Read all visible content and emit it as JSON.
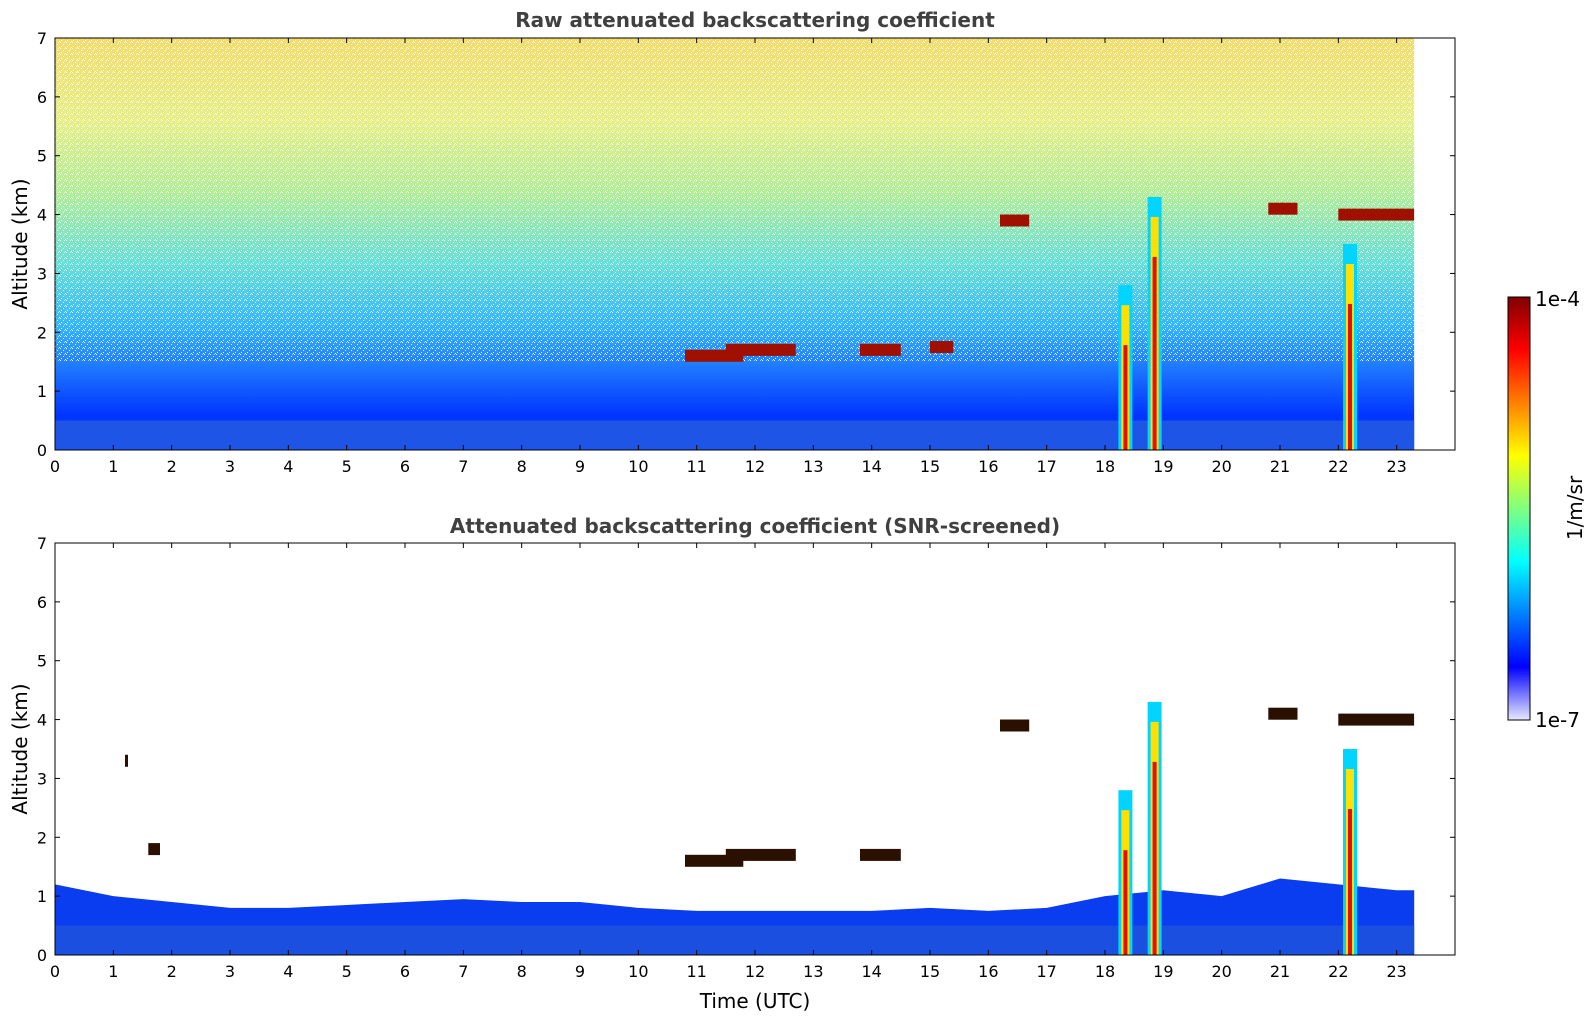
{
  "chart_data": [
    {
      "type": "heatmap",
      "title": "Raw attenuated backscattering coefficient",
      "xlabel": "",
      "ylabel": "Altitude (km)",
      "xlim": [
        0,
        24
      ],
      "ylim": [
        0,
        7
      ],
      "x_ticks": [
        "0",
        "1",
        "2",
        "3",
        "4",
        "5",
        "6",
        "7",
        "8",
        "9",
        "10",
        "11",
        "12",
        "13",
        "14",
        "15",
        "16",
        "17",
        "18",
        "19",
        "20",
        "21",
        "22",
        "23"
      ],
      "y_ticks": [
        "0",
        "1",
        "2",
        "3",
        "4",
        "5",
        "6",
        "7"
      ],
      "data_end_time": 23.3,
      "colorscale": "jet (log)",
      "features": {
        "boundary_layer_top_km": 0.5,
        "cloud_patches": [
          {
            "t_start": 10.8,
            "t_end": 11.8,
            "alt_km": 1.6
          },
          {
            "t_start": 11.5,
            "t_end": 12.7,
            "alt_km": 1.7
          },
          {
            "t_start": 13.8,
            "t_end": 14.5,
            "alt_km": 1.7
          },
          {
            "t_start": 15.0,
            "t_end": 15.4,
            "alt_km": 1.75
          },
          {
            "t_start": 16.2,
            "t_end": 16.7,
            "alt_km": 3.9
          },
          {
            "t_start": 20.8,
            "t_end": 21.3,
            "alt_km": 4.1
          },
          {
            "t_start": 22.0,
            "t_end": 23.3,
            "alt_km": 4.0
          }
        ],
        "precipitation_columns": [
          {
            "t": 18.35,
            "top_km": 2.8
          },
          {
            "t": 18.85,
            "top_km": 4.3
          },
          {
            "t": 22.2,
            "top_km": 3.5
          }
        ]
      }
    },
    {
      "type": "heatmap",
      "title": "Attenuated backscattering coefficient (SNR-screened)",
      "xlabel": "Time (UTC)",
      "ylabel": "Altitude (km)",
      "xlim": [
        0,
        24
      ],
      "ylim": [
        0,
        7
      ],
      "x_ticks": [
        "0",
        "1",
        "2",
        "3",
        "4",
        "5",
        "6",
        "7",
        "8",
        "9",
        "10",
        "11",
        "12",
        "13",
        "14",
        "15",
        "16",
        "17",
        "18",
        "19",
        "20",
        "21",
        "22",
        "23"
      ],
      "y_ticks": [
        "0",
        "1",
        "2",
        "3",
        "4",
        "5",
        "6",
        "7"
      ],
      "data_end_time": 23.3,
      "colorscale": "jet (log)",
      "features": {
        "boundary_layer_top_km": [
          1.2,
          1.0,
          0.9,
          0.8,
          0.8,
          0.85,
          0.9,
          0.95,
          0.9,
          0.9,
          0.8,
          0.75,
          0.75,
          0.75,
          0.75,
          0.8,
          0.75,
          0.8,
          1.0,
          1.1,
          1.0,
          1.3,
          1.2,
          1.1,
          1.1
        ],
        "cloud_patches": [
          {
            "t_start": 1.2,
            "t_end": 1.25,
            "alt_km": 3.3
          },
          {
            "t_start": 1.6,
            "t_end": 1.8,
            "alt_km": 1.8
          },
          {
            "t_start": 10.8,
            "t_end": 11.8,
            "alt_km": 1.6
          },
          {
            "t_start": 11.5,
            "t_end": 12.7,
            "alt_km": 1.7
          },
          {
            "t_start": 13.8,
            "t_end": 14.5,
            "alt_km": 1.7
          },
          {
            "t_start": 16.2,
            "t_end": 16.7,
            "alt_km": 3.9
          },
          {
            "t_start": 20.8,
            "t_end": 21.3,
            "alt_km": 4.1
          },
          {
            "t_start": 22.0,
            "t_end": 23.3,
            "alt_km": 4.0
          }
        ],
        "precipitation_columns": [
          {
            "t": 18.35,
            "top_km": 2.8
          },
          {
            "t": 18.85,
            "top_km": 4.3
          },
          {
            "t": 22.2,
            "top_km": 3.5
          }
        ]
      }
    }
  ],
  "colorbar": {
    "label": "1/m/sr",
    "max_label": "1e-4",
    "min_label": "1e-7",
    "colors": [
      "#e8e8ff",
      "#0000ff",
      "#0080ff",
      "#00ffff",
      "#80ff80",
      "#ffff00",
      "#ff8000",
      "#ff0000",
      "#800000"
    ]
  }
}
